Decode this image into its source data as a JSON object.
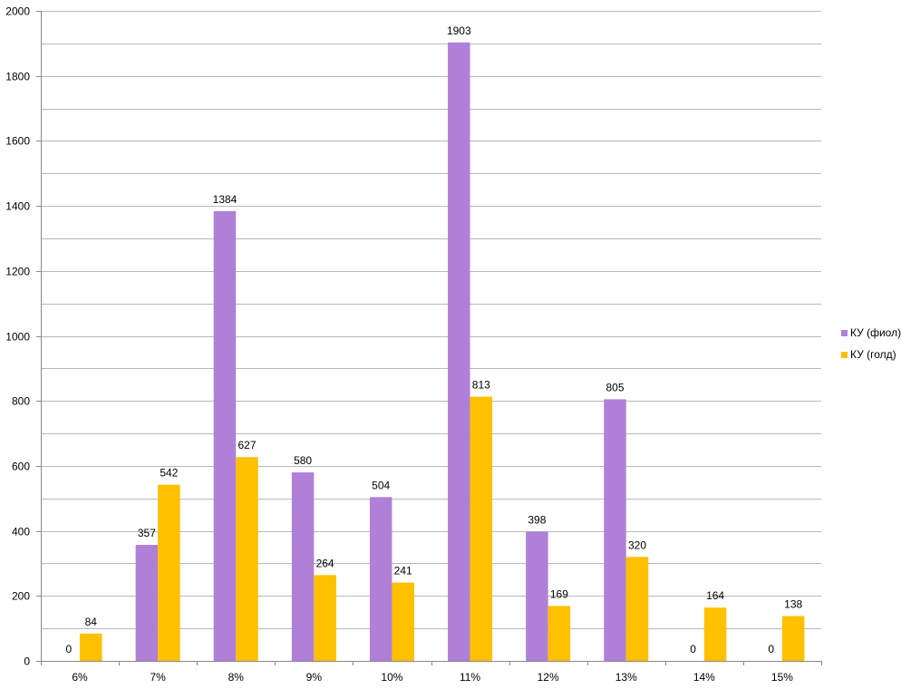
{
  "chart_data": {
    "type": "bar",
    "categories": [
      "6%",
      "7%",
      "8%",
      "9%",
      "10%",
      "11%",
      "12%",
      "13%",
      "14%",
      "15%"
    ],
    "series": [
      {
        "name": "КУ (фиол)",
        "color": "#b080d8",
        "values": [
          0,
          357,
          1384,
          580,
          504,
          1903,
          398,
          805,
          0,
          0
        ]
      },
      {
        "name": "КУ (голд)",
        "color": "#ffc000",
        "values": [
          84,
          542,
          627,
          264,
          241,
          813,
          169,
          320,
          164,
          138
        ]
      }
    ],
    "ylim": [
      0,
      2000
    ],
    "ymajor": 200,
    "yminor": 100,
    "yticks": [
      "0",
      "200",
      "400",
      "600",
      "800",
      "1000",
      "1200",
      "1400",
      "1600",
      "1800",
      "2000"
    ],
    "grid": true,
    "legend_position": "right",
    "data_labels": true
  }
}
